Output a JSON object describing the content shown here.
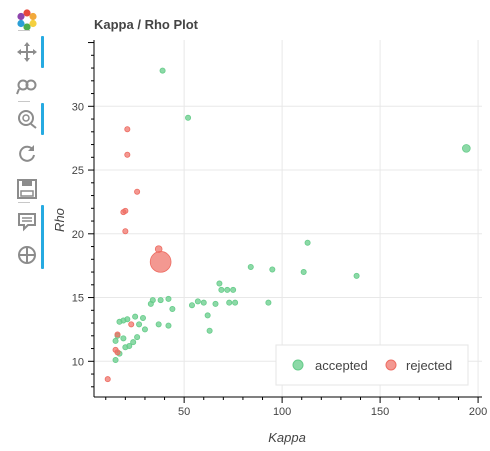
{
  "toolbar": {
    "tools": [
      "logo-icon",
      "pan-icon",
      "box-zoom-icon",
      "wheel-zoom-icon",
      "reset-icon",
      "save-icon",
      "hover-icon",
      "crosshair-icon"
    ]
  },
  "colors": {
    "accepted": "#66cc8a",
    "rejected": "#ee6c62",
    "toolbar_active": "#26aae1"
  },
  "chart_data": {
    "type": "scatter",
    "title": "Kappa / Rho Plot",
    "xlabel": "Kappa",
    "ylabel": "Rho",
    "xlim": [
      4,
      202
    ],
    "ylim": [
      7.2,
      35.2
    ],
    "xticks": [
      50,
      100,
      150,
      200
    ],
    "yticks": [
      10,
      15,
      20,
      25,
      30
    ],
    "grid": true,
    "legend_position": "bottom-right",
    "series": [
      {
        "name": "accepted",
        "color": "#66cc8a",
        "points": [
          [
            39,
            32.8,
            1
          ],
          [
            52,
            29.1,
            1
          ],
          [
            194,
            26.7,
            1.5
          ],
          [
            113,
            19.3,
            1
          ],
          [
            84,
            17.4,
            1
          ],
          [
            95,
            17.2,
            1
          ],
          [
            111,
            17.0,
            1
          ],
          [
            138,
            16.7,
            1
          ],
          [
            68,
            16.1,
            1
          ],
          [
            69,
            15.6,
            1
          ],
          [
            72,
            15.6,
            1
          ],
          [
            75,
            15.6,
            1
          ],
          [
            42,
            14.9,
            1
          ],
          [
            38,
            14.8,
            1
          ],
          [
            34,
            14.8,
            1
          ],
          [
            33,
            14.5,
            1
          ],
          [
            57,
            14.7,
            1
          ],
          [
            60,
            14.6,
            1
          ],
          [
            66,
            14.5,
            1
          ],
          [
            54,
            14.4,
            1
          ],
          [
            44,
            14.1,
            1
          ],
          [
            73,
            14.6,
            1
          ],
          [
            76,
            14.6,
            1
          ],
          [
            93,
            14.6,
            1
          ],
          [
            62,
            13.6,
            1
          ],
          [
            25,
            13.5,
            1
          ],
          [
            29,
            13.4,
            1
          ],
          [
            21,
            13.3,
            1
          ],
          [
            17,
            13.1,
            1
          ],
          [
            19,
            13.2,
            1
          ],
          [
            27,
            12.9,
            1
          ],
          [
            37,
            12.9,
            1
          ],
          [
            42,
            12.8,
            1
          ],
          [
            30,
            12.5,
            1
          ],
          [
            63,
            12.4,
            1
          ],
          [
            16,
            12.0,
            1
          ],
          [
            26,
            11.9,
            1
          ],
          [
            19,
            11.8,
            1
          ],
          [
            15,
            11.6,
            1
          ],
          [
            24,
            11.5,
            1
          ],
          [
            22,
            11.2,
            1
          ],
          [
            20,
            11.1,
            1
          ],
          [
            17,
            10.6,
            1
          ],
          [
            15,
            10.1,
            1
          ]
        ]
      },
      {
        "name": "rejected",
        "color": "#ee6c62",
        "points": [
          [
            21,
            28.2,
            1
          ],
          [
            21,
            26.2,
            1
          ],
          [
            26,
            23.3,
            1
          ],
          [
            20,
            21.8,
            1
          ],
          [
            19,
            21.7,
            1
          ],
          [
            20,
            20.2,
            1
          ],
          [
            37,
            18.8,
            1.3
          ],
          [
            38,
            17.8,
            4
          ],
          [
            16,
            12.1,
            1
          ],
          [
            23,
            12.9,
            1
          ],
          [
            15,
            10.9,
            1
          ],
          [
            16,
            10.7,
            1
          ],
          [
            11,
            8.6,
            1
          ]
        ]
      }
    ]
  }
}
